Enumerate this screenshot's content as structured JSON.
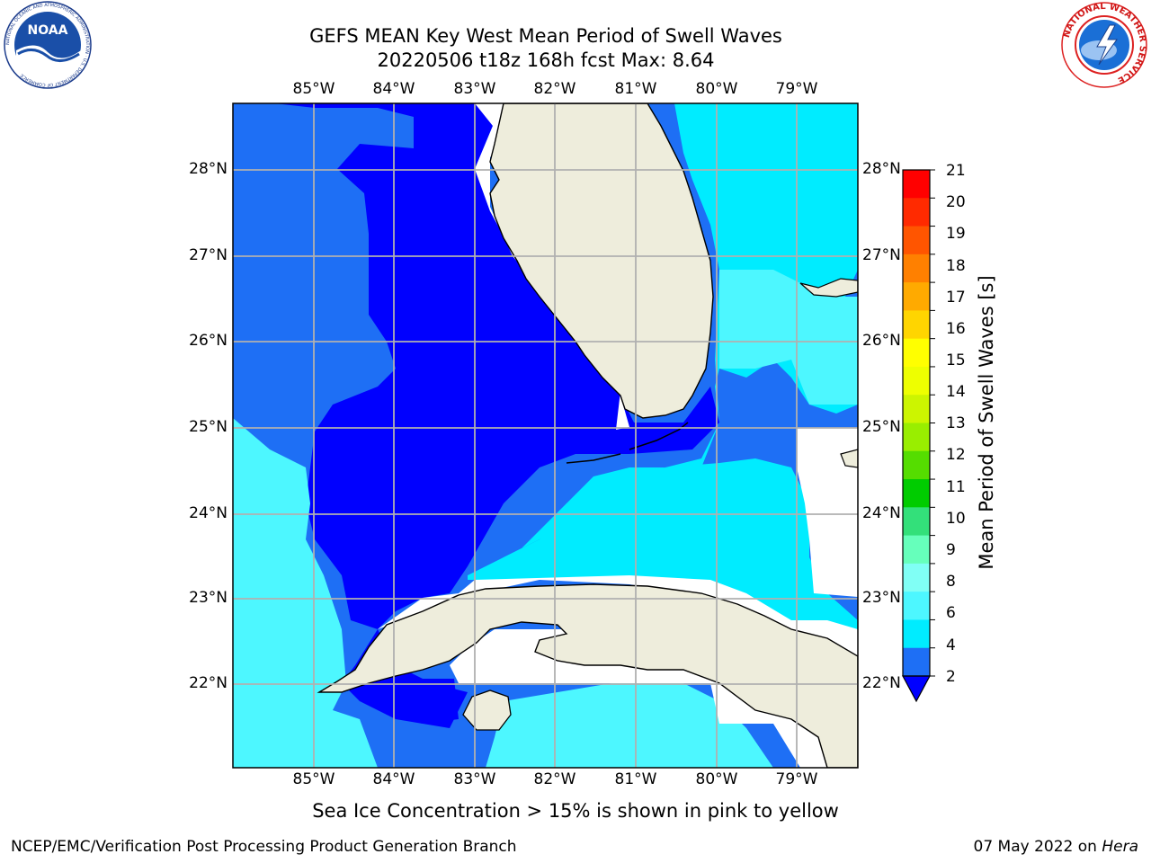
{
  "header": {
    "title_line1": "GEFS MEAN Key West Mean Period of Swell Waves",
    "title_line2": "20220506 t18z 168h fcst   Max: 8.64"
  },
  "logos": {
    "left": "noaa-logo",
    "right": "nws-logo",
    "left_text": "NOAA",
    "left_ring_text": "NATIONAL OCEANIC AND ATMOSPHERIC ADMINISTRATION · U.S. DEPARTMENT OF COMMERCE",
    "right_ring_text": "NATIONAL WEATHER SERVICE"
  },
  "map": {
    "lon_labels": [
      "85°W",
      "84°W",
      "83°W",
      "82°W",
      "81°W",
      "80°W",
      "79°W"
    ],
    "lat_labels": [
      "28°N",
      "27°N",
      "26°N",
      "25°N",
      "24°N",
      "23°N",
      "22°N"
    ],
    "colors": {
      "land": "#eeeddc",
      "ocean_deep": "#0000ff",
      "ocean_mid": "#1e6ff5",
      "ocean_light": "#00ecff",
      "ocean_pale": "#4df7ff",
      "grid": "#b0b0b0"
    }
  },
  "colorbar": {
    "label": "Mean Period of Swell Waves [s]",
    "ticks": [
      "21",
      "20",
      "19",
      "18",
      "17",
      "16",
      "15",
      "14",
      "13",
      "12",
      "11",
      "10",
      "9",
      "8",
      "6",
      "4",
      "2"
    ],
    "colors": [
      "#ff0000",
      "#ff2a00",
      "#ff5500",
      "#ff8000",
      "#ffaa00",
      "#ffd500",
      "#ffff00",
      "#eeff00",
      "#ccf500",
      "#99ee00",
      "#55dd00",
      "#00cc00",
      "#33e07a",
      "#66ffbb",
      "#80fff5",
      "#4df7ff",
      "#00ecff",
      "#1e6ff5",
      "#0000ff"
    ]
  },
  "footer": {
    "note": "Sea Ice Concentration > 15% is shown in pink to yellow",
    "left": "NCEP/EMC/Verification Post Processing Product Generation Branch",
    "right_date": "07 May 2022 on ",
    "right_host": "Hera"
  }
}
